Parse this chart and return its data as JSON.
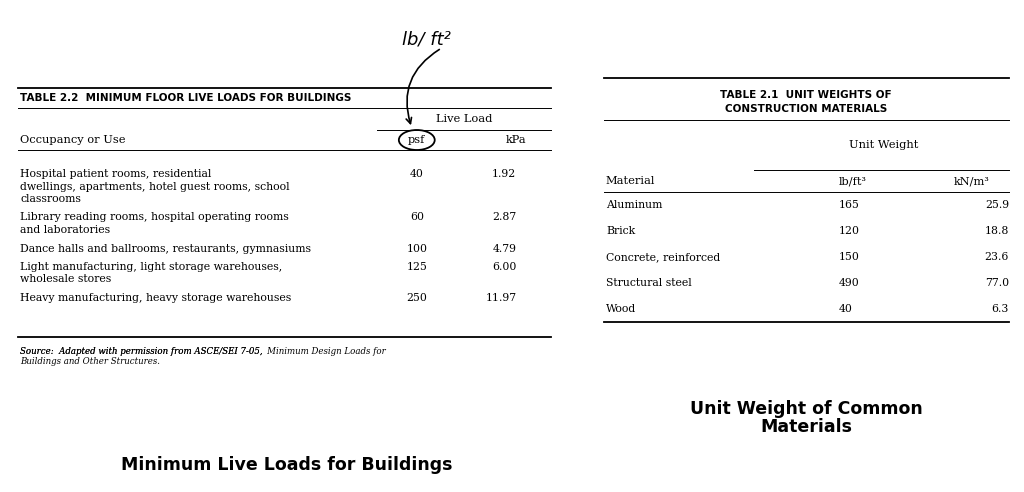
{
  "table1_title": "TABLE 2.2  MINIMUM FLOOR LIVE LOADS FOR BUILDINGS",
  "table1_col_header_group": "Live Load",
  "table1_col1_header": "Occupancy or Use",
  "table1_col2_header": "psf",
  "table1_col3_header": "kPa",
  "table1_rows": [
    {
      "occupancy_lines": [
        "Hospital patient rooms, residential",
        "dwellings, apartments, hotel guest rooms, school",
        "classrooms"
      ],
      "psf": "40",
      "kpa": "1.92"
    },
    {
      "occupancy_lines": [
        "Library reading rooms, hospital operating rooms",
        "and laboratories"
      ],
      "psf": "60",
      "kpa": "2.87"
    },
    {
      "occupancy_lines": [
        "Dance halls and ballrooms, restaurants, gymnasiums"
      ],
      "psf": "100",
      "kpa": "4.79"
    },
    {
      "occupancy_lines": [
        "Light manufacturing, light storage warehouses,",
        "wholesale stores"
      ],
      "psf": "125",
      "kpa": "6.00"
    },
    {
      "occupancy_lines": [
        "Heavy manufacturing, heavy storage warehouses"
      ],
      "psf": "250",
      "kpa": "11.97"
    }
  ],
  "table1_source_normal": "Source: ",
  "table1_source_italic": " Adapted with permission from ASCE/SEI 7-05, ",
  "table1_source_italic2": "Minimum Design Loads for",
  "table1_source_line2": "Buildings and Other Structures.",
  "table1_caption": "Minimum Live Loads for Buildings",
  "table2_title_line1": "TABLE 2.1  UNIT WEIGHTS OF",
  "table2_title_line2": "CONSTRUCTION MATERIALS",
  "table2_col_header_group": "Unit Weight",
  "table2_col1_header": "Material",
  "table2_col2_header": "lb/ft³",
  "table2_col3_header": "kN/m³",
  "table2_rows": [
    {
      "material": "Aluminum",
      "lb": "165",
      "kn": "25.9"
    },
    {
      "material": "Brick",
      "lb": "120",
      "kn": "18.8"
    },
    {
      "material": "Concrete, reinforced",
      "lb": "150",
      "kn": "23.6"
    },
    {
      "material": "Structural steel",
      "lb": "490",
      "kn": "77.0"
    },
    {
      "material": "Wood",
      "lb": "40",
      "kn": "6.3"
    }
  ],
  "table2_caption_line1": "Unit Weight of Common",
  "table2_caption_line2": "Materials",
  "handwriting_text": "lb/ ft²",
  "bg_color": "#ffffff"
}
